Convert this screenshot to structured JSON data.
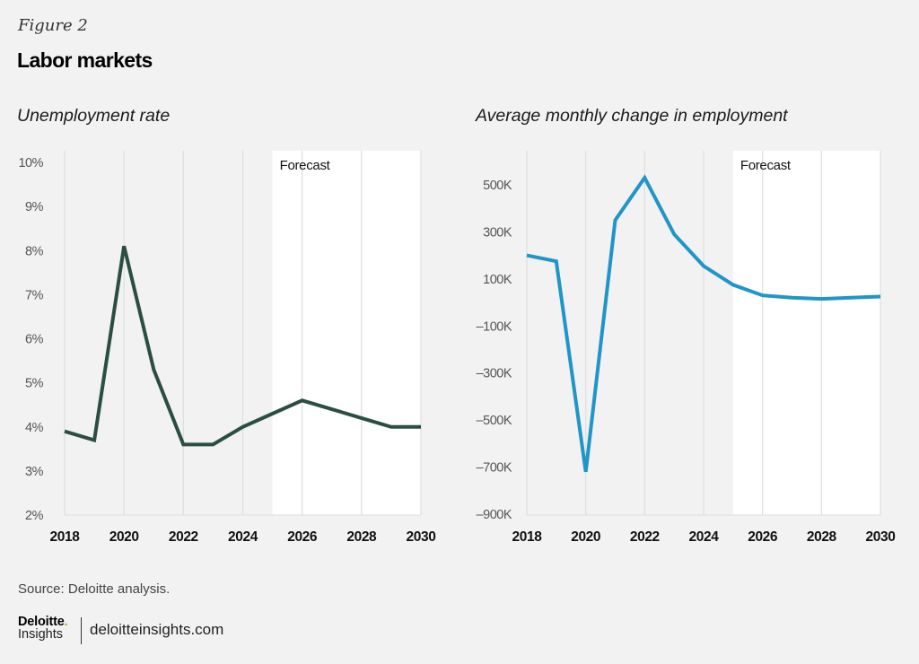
{
  "figure_label": "Figure 2",
  "figure_title": "Labor markets",
  "source": "Source: Deloitte analysis.",
  "footer": {
    "logo_name": "Deloitte",
    "logo_dot": ".",
    "logo_sub": "Insights",
    "site": "deloitteinsights.com"
  },
  "colors": {
    "left_line": "#2a4e42",
    "right_line": "#1f95c8",
    "forecast_band": "#ffffff",
    "background": "#f2f2f2",
    "gridline": "#dedede",
    "logo_dot": "#86bc25"
  },
  "chart_data": [
    {
      "type": "line",
      "title": "Unemployment rate",
      "xlabel": "",
      "ylabel": "",
      "x": [
        2018,
        2019,
        2020,
        2021,
        2022,
        2023,
        2024,
        2025,
        2026,
        2027,
        2028,
        2029,
        2030
      ],
      "series": [
        {
          "name": "Unemployment rate (%)",
          "values": [
            3.9,
            3.7,
            8.1,
            5.3,
            3.6,
            3.6,
            4.0,
            4.3,
            4.6,
            4.4,
            4.2,
            4.0,
            4.0
          ]
        }
      ],
      "xlim": [
        2018,
        2030
      ],
      "ylim": [
        2,
        10
      ],
      "x_ticks": [
        2018,
        2020,
        2022,
        2024,
        2026,
        2028,
        2030
      ],
      "x_tick_labels": [
        "2018",
        "2020",
        "2022",
        "2024",
        "2026",
        "2028",
        "2030"
      ],
      "y_ticks": [
        10,
        9,
        8,
        7,
        6,
        5,
        4,
        3,
        2
      ],
      "y_tick_labels": [
        "10%",
        "9%",
        "8%",
        "7%",
        "6%",
        "5%",
        "4%",
        "3%",
        "2%"
      ],
      "grid": "vertical",
      "forecast": {
        "label": "Forecast",
        "start": 2025,
        "end": 2030
      },
      "legend": "none"
    },
    {
      "type": "line",
      "title": "Average monthly change in employment",
      "xlabel": "",
      "ylabel": "",
      "x": [
        2018,
        2019,
        2020,
        2021,
        2022,
        2023,
        2024,
        2025,
        2026,
        2027,
        2028,
        2029,
        2030
      ],
      "series": [
        {
          "name": "Average monthly change in employment (thousands)",
          "values": [
            200,
            175,
            -720,
            350,
            530,
            290,
            155,
            75,
            30,
            20,
            15,
            20,
            25
          ]
        }
      ],
      "xlim": [
        2018,
        2030
      ],
      "ylim": [
        -900,
        500
      ],
      "x_ticks": [
        2018,
        2020,
        2022,
        2024,
        2026,
        2028,
        2030
      ],
      "x_tick_labels": [
        "2018",
        "2020",
        "2022",
        "2024",
        "2026",
        "2028",
        "2030"
      ],
      "y_ticks": [
        500,
        300,
        100,
        -100,
        -300,
        -500,
        -700,
        -900
      ],
      "y_tick_labels": [
        "500K",
        "300K",
        "100K",
        "–100K",
        "–300K",
        "–500K",
        "–700K",
        "–900K"
      ],
      "grid": "vertical",
      "forecast": {
        "label": "Forecast",
        "start": 2025,
        "end": 2030
      },
      "legend": "none"
    }
  ]
}
